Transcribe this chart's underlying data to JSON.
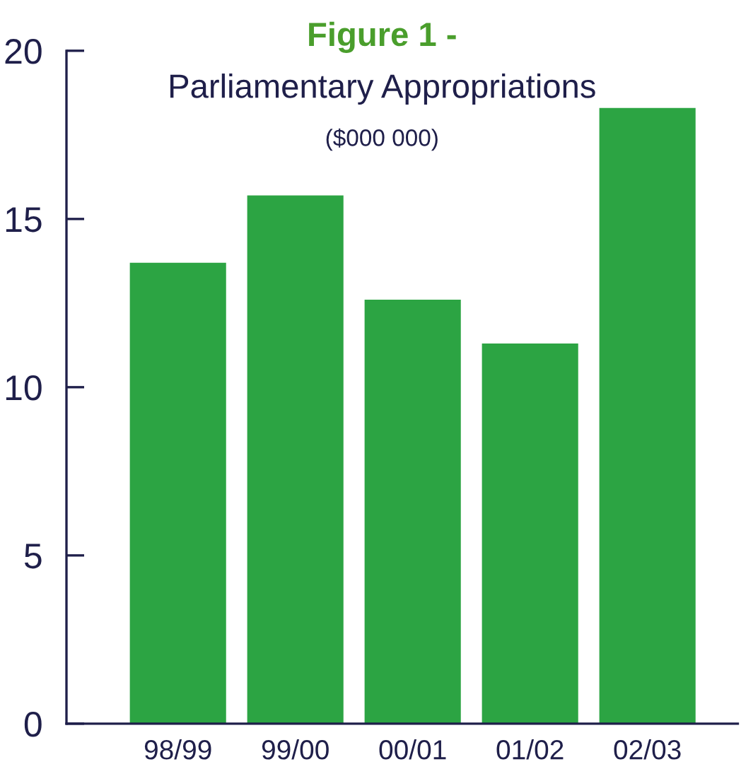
{
  "chart_data": {
    "type": "bar",
    "title": "Figure 1 -",
    "subtitle": "Parliamentary Appropriations",
    "annotations": [
      "($000 000)"
    ],
    "categories": [
      "98/99",
      "99/00",
      "00/01",
      "01/02",
      "02/03"
    ],
    "values": [
      13.7,
      15.7,
      12.6,
      11.3,
      18.3
    ],
    "color": "#2ca443",
    "ylim": [
      0,
      20
    ],
    "yticks": [
      0,
      5,
      10,
      15,
      20
    ],
    "grid": false,
    "legend": false
  }
}
